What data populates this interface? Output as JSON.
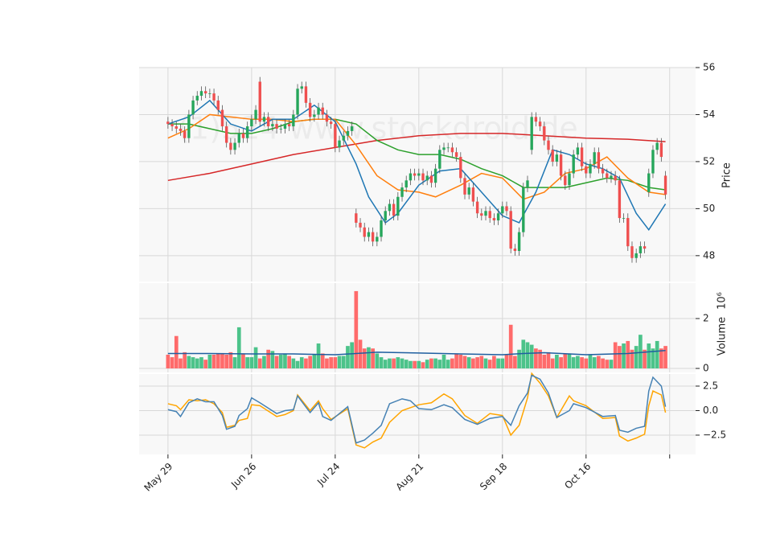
{
  "chart_data": {
    "type": "candlestick",
    "watermark": "(1)524 www.stockdroid.de",
    "xlim": [
      -6.9,
      126.2
    ],
    "xticks": [
      {
        "value": 0,
        "label": "May 29"
      },
      {
        "value": 20,
        "label": "Jun 26"
      },
      {
        "value": 40,
        "label": "Jul 24"
      },
      {
        "value": 60,
        "label": "Aug 21"
      },
      {
        "value": 80,
        "label": "Sep 18"
      },
      {
        "value": 100,
        "label": "Oct 16"
      },
      {
        "value": 120,
        "label": null
      }
    ],
    "grid": true,
    "x": [
      0,
      1,
      2,
      3,
      4,
      5,
      6,
      7,
      8,
      9,
      10,
      11,
      12,
      13,
      14,
      15,
      16,
      17,
      18,
      19,
      20,
      21,
      22,
      23,
      24,
      25,
      26,
      27,
      28,
      29,
      30,
      31,
      32,
      33,
      34,
      35,
      36,
      37,
      38,
      39,
      40,
      41,
      42,
      43,
      44,
      45,
      46,
      47,
      48,
      49,
      50,
      51,
      52,
      53,
      54,
      55,
      56,
      57,
      58,
      59,
      60,
      61,
      62,
      63,
      64,
      65,
      66,
      67,
      68,
      69,
      70,
      71,
      72,
      73,
      74,
      75,
      76,
      77,
      78,
      79,
      80,
      81,
      82,
      83,
      84,
      85,
      86,
      87,
      88,
      89,
      90,
      91,
      92,
      93,
      94,
      95,
      96,
      97,
      98,
      99,
      100,
      101,
      102,
      103,
      104,
      105,
      106,
      107,
      108,
      109,
      110,
      111,
      112,
      113,
      114,
      115,
      116,
      117,
      118,
      119
    ],
    "price": {
      "ylabel": "Price",
      "ylim": [
        46.9,
        56
      ],
      "yticks": [
        48,
        50,
        52,
        54,
        56
      ],
      "up_color": "#26a65b",
      "down_color": "#ef4f4f",
      "open": [
        53.7,
        53.6,
        53.5,
        53.4,
        53.3,
        53.0,
        54.0,
        54.6,
        54.8,
        55.0,
        54.9,
        54.9,
        54.6,
        54.2,
        53.5,
        52.8,
        52.5,
        52.8,
        53.2,
        53.0,
        53.5,
        53.8,
        55.4,
        53.7,
        53.9,
        53.5,
        53.6,
        53.4,
        53.4,
        53.6,
        53.5,
        54.0,
        55.1,
        55.2,
        54.5,
        53.9,
        54.0,
        54.3,
        54.0,
        53.7,
        53.6,
        52.6,
        52.9,
        53.1,
        53.3,
        49.8,
        49.4,
        49.2,
        48.8,
        49.0,
        48.6,
        48.8,
        49.5,
        49.9,
        50.2,
        49.7,
        50.5,
        50.9,
        51.2,
        51.5,
        51.4,
        51.5,
        51.2,
        51.4,
        51.1,
        51.7,
        52.5,
        52.6,
        52.6,
        52.4,
        52.2,
        51.3,
        50.6,
        50.9,
        50.3,
        49.8,
        49.7,
        49.9,
        49.6,
        49.5,
        49.8,
        50.1,
        49.9,
        48.3,
        48.2,
        49.0,
        50.9,
        52.5,
        53.9,
        53.7,
        53.5,
        52.9,
        52.5,
        52.0,
        52.3,
        51.4,
        51.0,
        51.5,
        52.3,
        52.6,
        51.8,
        51.5,
        51.9,
        52.4,
        51.7,
        51.5,
        51.3,
        51.4,
        51.2,
        49.6,
        49.6,
        48.4,
        47.9,
        48.1,
        48.4,
        50.7,
        51.5,
        52.5,
        52.8,
        51.4
      ],
      "high": [
        53.9,
        53.8,
        53.7,
        53.6,
        53.5,
        54.2,
        54.8,
        55.0,
        55.2,
        55.2,
        55.1,
        55.1,
        54.8,
        54.4,
        53.7,
        53.0,
        53.0,
        53.4,
        53.4,
        53.7,
        54.0,
        54.4,
        55.6,
        54.1,
        54.1,
        53.8,
        53.8,
        53.6,
        53.8,
        53.8,
        54.2,
        55.3,
        55.4,
        55.4,
        54.7,
        54.2,
        54.5,
        54.5,
        54.2,
        53.9,
        53.8,
        53.1,
        53.3,
        53.5,
        53.7,
        50.0,
        49.6,
        49.4,
        49.2,
        49.2,
        49.0,
        49.7,
        50.1,
        50.4,
        50.4,
        50.7,
        51.1,
        51.4,
        51.7,
        51.7,
        51.7,
        51.7,
        51.6,
        51.6,
        51.9,
        52.7,
        52.8,
        52.8,
        52.8,
        52.6,
        52.4,
        51.5,
        51.1,
        51.1,
        50.5,
        50.0,
        50.1,
        50.1,
        49.8,
        50.0,
        50.3,
        50.3,
        50.1,
        48.5,
        49.2,
        51.1,
        51.4,
        54.1,
        54.1,
        53.9,
        53.7,
        53.1,
        52.7,
        52.5,
        52.5,
        51.6,
        51.7,
        52.5,
        52.8,
        52.8,
        52.0,
        52.1,
        52.6,
        52.6,
        51.9,
        51.7,
        51.6,
        51.6,
        51.4,
        49.8,
        49.8,
        48.6,
        48.3,
        48.6,
        48.6,
        51.7,
        52.7,
        53.0,
        53.0,
        51.6
      ],
      "low": [
        53.4,
        53.3,
        53.2,
        53.1,
        52.8,
        52.8,
        53.8,
        54.4,
        54.6,
        54.7,
        54.7,
        54.4,
        54.0,
        53.3,
        52.6,
        52.3,
        52.3,
        52.6,
        52.8,
        52.8,
        53.3,
        53.6,
        53.5,
        53.5,
        53.3,
        53.3,
        53.2,
        53.2,
        53.2,
        53.3,
        53.3,
        53.8,
        54.9,
        54.3,
        53.7,
        53.7,
        53.8,
        53.8,
        53.5,
        53.4,
        52.4,
        52.4,
        52.7,
        52.9,
        53.1,
        49.2,
        49.0,
        48.6,
        48.6,
        48.4,
        48.4,
        48.6,
        49.3,
        49.7,
        49.5,
        49.5,
        50.3,
        50.7,
        51.0,
        51.2,
        51.2,
        51.0,
        51.0,
        50.9,
        50.9,
        51.5,
        52.3,
        52.4,
        52.2,
        52.0,
        51.1,
        50.4,
        50.4,
        50.1,
        49.6,
        49.5,
        49.5,
        49.4,
        49.3,
        49.3,
        49.6,
        49.7,
        48.1,
        48.0,
        48.0,
        48.8,
        50.7,
        52.3,
        53.5,
        53.3,
        52.7,
        52.3,
        51.8,
        51.8,
        51.2,
        50.8,
        50.8,
        51.3,
        52.1,
        51.6,
        51.3,
        51.3,
        51.7,
        51.5,
        51.3,
        51.1,
        51.1,
        51.0,
        49.4,
        49.4,
        48.2,
        47.7,
        47.7,
        47.9,
        48.1,
        50.5,
        51.3,
        52.3,
        52.0,
        50.4
      ],
      "close": [
        53.6,
        53.5,
        53.4,
        53.3,
        53.0,
        54.0,
        54.6,
        54.8,
        55.0,
        54.9,
        54.9,
        54.6,
        54.2,
        53.5,
        52.8,
        52.5,
        52.8,
        53.2,
        53.0,
        53.5,
        53.8,
        54.2,
        53.7,
        53.9,
        53.5,
        53.6,
        53.4,
        53.4,
        53.6,
        53.5,
        54.0,
        55.1,
        55.2,
        54.5,
        53.9,
        54.0,
        54.3,
        54.0,
        53.7,
        53.6,
        52.6,
        52.9,
        53.1,
        53.3,
        53.5,
        49.4,
        49.2,
        48.8,
        49.0,
        48.6,
        48.8,
        49.5,
        49.9,
        50.2,
        49.7,
        50.5,
        50.9,
        51.2,
        51.5,
        51.4,
        51.5,
        51.2,
        51.4,
        51.1,
        51.7,
        52.5,
        52.6,
        52.6,
        52.4,
        52.2,
        51.3,
        50.6,
        50.9,
        50.3,
        49.8,
        49.7,
        49.9,
        49.6,
        49.5,
        49.8,
        50.1,
        49.9,
        48.3,
        48.2,
        49.0,
        50.9,
        51.2,
        53.9,
        53.7,
        53.5,
        52.9,
        52.5,
        52.0,
        52.3,
        51.4,
        51.0,
        51.5,
        52.3,
        52.6,
        51.8,
        51.5,
        51.9,
        52.4,
        51.7,
        51.5,
        51.3,
        51.4,
        51.2,
        49.6,
        49.6,
        48.4,
        47.9,
        48.1,
        48.4,
        48.3,
        51.5,
        52.5,
        52.8,
        52.2,
        50.6
      ],
      "moving_averages": [
        {
          "color": "#d62728",
          "x": [
            0,
            10,
            20,
            30,
            40,
            50,
            60,
            70,
            80,
            90,
            100,
            110,
            119
          ],
          "values": [
            51.2,
            51.5,
            51.9,
            52.3,
            52.6,
            52.9,
            53.1,
            53.2,
            53.2,
            53.1,
            53.0,
            52.95,
            52.85
          ]
        },
        {
          "color": "#2ca02c",
          "x": [
            0,
            5,
            10,
            15,
            20,
            25,
            30,
            35,
            40,
            45,
            50,
            55,
            60,
            65,
            70,
            75,
            80,
            85,
            90,
            95,
            100,
            105,
            110,
            115,
            119
          ],
          "values": [
            53.6,
            53.6,
            53.4,
            53.2,
            53.2,
            53.4,
            53.7,
            53.8,
            53.8,
            53.6,
            52.9,
            52.5,
            52.3,
            52.3,
            52.1,
            51.7,
            51.4,
            50.9,
            50.9,
            50.9,
            51.1,
            51.3,
            51.2,
            50.9,
            50.8
          ]
        },
        {
          "color": "#ff7f0e",
          "x": [
            0,
            5,
            10,
            15,
            20,
            25,
            30,
            35,
            40,
            45,
            50,
            55,
            60,
            64,
            70,
            75,
            80,
            85,
            90,
            95,
            100,
            105,
            110,
            115,
            119
          ],
          "values": [
            53.0,
            53.4,
            54.0,
            53.9,
            53.8,
            53.8,
            53.7,
            53.8,
            53.8,
            52.7,
            51.4,
            50.8,
            50.7,
            50.5,
            51.0,
            51.5,
            51.3,
            50.4,
            50.7,
            51.5,
            51.7,
            52.2,
            51.3,
            50.7,
            50.6
          ]
        },
        {
          "color": "#1f77b4",
          "x": [
            0,
            5,
            10,
            15,
            20,
            25,
            30,
            35,
            40,
            45,
            48,
            52,
            55,
            60,
            65,
            70,
            75,
            80,
            84,
            88,
            92,
            96,
            100,
            104,
            108,
            112,
            115,
            119
          ],
          "values": [
            53.6,
            53.9,
            54.6,
            53.6,
            53.3,
            53.8,
            53.8,
            54.4,
            53.7,
            51.9,
            50.5,
            49.4,
            49.8,
            51.0,
            51.6,
            51.7,
            50.7,
            49.7,
            49.4,
            50.7,
            52.5,
            52.3,
            51.9,
            51.7,
            51.3,
            49.8,
            49.1,
            50.2
          ]
        }
      ]
    },
    "volume": {
      "ylabel": "Volume",
      "scale_label": "10⁶",
      "ylim": [
        -0.16,
        3.42
      ],
      "yticks": [
        0,
        2
      ],
      "up_color": "#4cc38a",
      "down_color": "#ff6b6b",
      "values": [
        0.55,
        0.45,
        1.3,
        0.4,
        0.65,
        0.5,
        0.45,
        0.4,
        0.45,
        0.35,
        0.55,
        0.55,
        0.6,
        0.6,
        0.55,
        0.65,
        0.45,
        1.65,
        0.6,
        0.45,
        0.45,
        0.85,
        0.4,
        0.5,
        0.75,
        0.7,
        0.5,
        0.55,
        0.6,
        0.5,
        0.4,
        0.3,
        0.45,
        0.4,
        0.5,
        0.55,
        1.0,
        0.6,
        0.4,
        0.45,
        0.45,
        0.5,
        0.5,
        0.9,
        1.05,
        3.1,
        1.15,
        0.8,
        0.85,
        0.8,
        0.6,
        0.45,
        0.35,
        0.4,
        0.4,
        0.45,
        0.4,
        0.35,
        0.3,
        0.3,
        0.3,
        0.25,
        0.35,
        0.4,
        0.4,
        0.35,
        0.55,
        0.35,
        0.4,
        0.6,
        0.55,
        0.5,
        0.45,
        0.4,
        0.45,
        0.5,
        0.4,
        0.35,
        0.5,
        0.4,
        0.4,
        0.55,
        1.75,
        0.5,
        0.75,
        1.15,
        1.05,
        0.95,
        0.8,
        0.75,
        0.55,
        0.65,
        0.4,
        0.55,
        0.45,
        0.6,
        0.6,
        0.45,
        0.5,
        0.45,
        0.4,
        0.55,
        0.45,
        0.5,
        0.4,
        0.35,
        0.35,
        1.05,
        0.9,
        1.0,
        1.1,
        0.75,
        0.9,
        1.35,
        0.75,
        1.0,
        0.8,
        1.1,
        0.8,
        0.9
      ],
      "average": {
        "color": "#1f5fa0",
        "x": [
          0,
          10,
          20,
          30,
          40,
          45,
          50,
          60,
          70,
          80,
          85,
          90,
          100,
          110,
          119
        ],
        "values": [
          0.6,
          0.6,
          0.58,
          0.58,
          0.55,
          0.6,
          0.65,
          0.62,
          0.58,
          0.55,
          0.6,
          0.63,
          0.55,
          0.6,
          0.72
        ]
      }
    },
    "indicator": {
      "ylim": [
        -4.47,
        3.73
      ],
      "yticks": [
        {
          "value": -2.5,
          "label": "−2.5"
        },
        {
          "value": 0,
          "label": "0.0"
        },
        {
          "value": 2.5,
          "label": "2.5"
        }
      ],
      "x": [
        0,
        2,
        3,
        5,
        7,
        9,
        11,
        13,
        14,
        16,
        17,
        19,
        20,
        22,
        26,
        28,
        30,
        31,
        34,
        36,
        37,
        39,
        43,
        45,
        47,
        49,
        51,
        53,
        56,
        58,
        60,
        63,
        66,
        68,
        71,
        74,
        77,
        80,
        82,
        84,
        86,
        87,
        89,
        91,
        93,
        96,
        97,
        100,
        104,
        107,
        108,
        110,
        112,
        114,
        115,
        116,
        118,
        119
      ],
      "series": [
        {
          "color": "#ffa500",
          "values": [
            0.7,
            0.5,
            0.1,
            1.1,
            1.0,
            1.1,
            0.7,
            -0.2,
            -1.7,
            -1.5,
            -1.0,
            -0.8,
            0.6,
            0.5,
            -0.6,
            -0.4,
            0.0,
            1.6,
            0.0,
            1.0,
            0.2,
            -0.9,
            0.2,
            -3.5,
            -3.8,
            -3.2,
            -2.8,
            -1.2,
            0.0,
            0.3,
            0.6,
            0.8,
            1.7,
            1.2,
            -0.5,
            -1.3,
            -0.3,
            -0.5,
            -2.5,
            -1.5,
            1.3,
            3.8,
            2.8,
            1.5,
            -0.7,
            1.5,
            1.0,
            0.5,
            -0.8,
            -0.7,
            -2.6,
            -3.1,
            -2.8,
            -2.4,
            0.5,
            2.0,
            1.6,
            -0.2
          ]
        },
        {
          "color": "#4682b4",
          "values": [
            0.1,
            -0.1,
            -0.6,
            0.8,
            1.2,
            0.9,
            0.9,
            -0.5,
            -1.9,
            -1.6,
            -0.5,
            0.2,
            1.3,
            0.8,
            -0.3,
            0.0,
            0.1,
            1.5,
            -0.2,
            0.8,
            -0.6,
            -1.0,
            0.4,
            -3.3,
            -3.0,
            -2.3,
            -1.5,
            0.7,
            1.2,
            1.0,
            0.2,
            0.1,
            0.6,
            0.3,
            -0.9,
            -1.4,
            -0.8,
            -0.6,
            -1.5,
            0.5,
            1.8,
            3.6,
            3.2,
            1.8,
            -0.7,
            0.0,
            0.7,
            0.3,
            -0.6,
            -0.5,
            -2.0,
            -2.2,
            -1.8,
            -1.6,
            2.0,
            3.4,
            2.5,
            0.4
          ]
        }
      ]
    }
  }
}
